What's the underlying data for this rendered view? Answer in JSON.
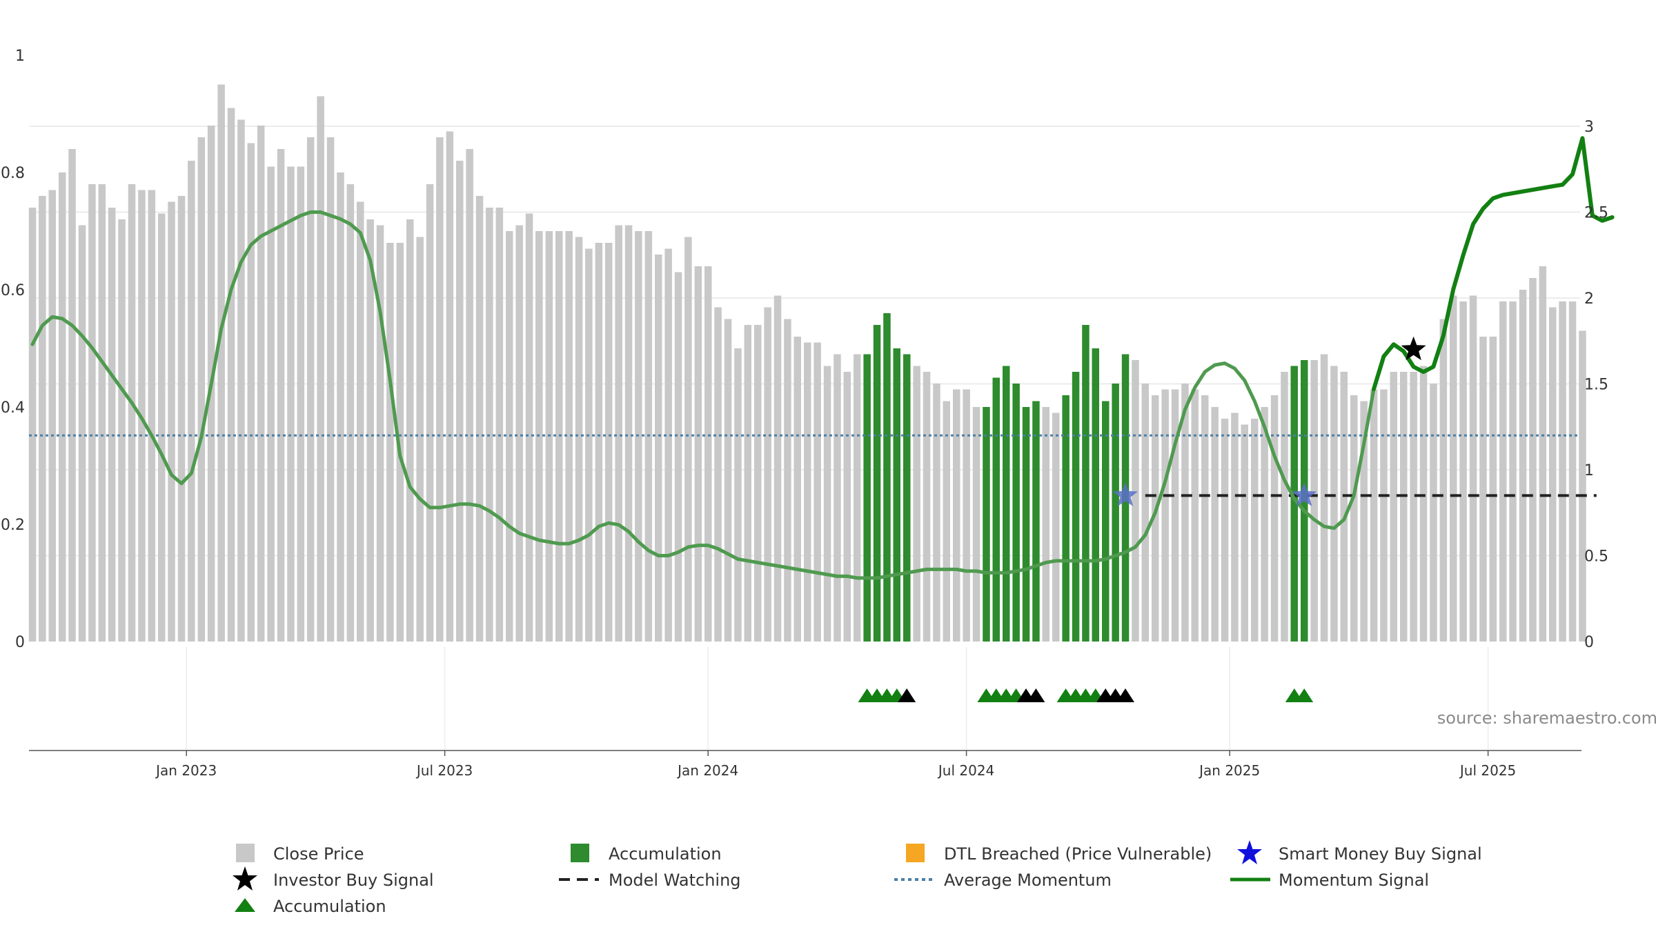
{
  "chart_data": {
    "type": "bar",
    "x_ticks": [
      "Jan 2023",
      "Jul 2023",
      "Jan 2024",
      "Jul 2024",
      "Jan 2025",
      "Jul 2025"
    ],
    "left_axis": {
      "ticks": [
        "0",
        "0.2",
        "0.4",
        "0.6",
        "0.8",
        "1"
      ],
      "ylim": [
        0,
        1
      ]
    },
    "right_axis": {
      "ticks": [
        "0",
        "0.5",
        "1",
        "1.5",
        "2",
        "2.5",
        "3"
      ],
      "ylim": [
        0,
        3.4
      ]
    },
    "grid": "horizontal",
    "legend_position": "bottom",
    "source": "source: sharemaestro.com",
    "colors": {
      "close_price": "#c8c8c8",
      "accumulation_bar": "#2e8b2e",
      "dtl_breached": "#f5a623",
      "momentum": "#128012",
      "average_momentum": "#4a7fa6",
      "model_watching": "#222222",
      "smart_money": "#1010dd",
      "investor_buy": "#000000",
      "accumulation_marker": "#128012"
    },
    "legend": [
      {
        "label": "Close Price",
        "icon": "grey-square-icon"
      },
      {
        "label": "Accumulation",
        "icon": "green-square-icon"
      },
      {
        "label": "DTL Breached (Price Vulnerable)",
        "icon": "orange-square-icon"
      },
      {
        "label": "Smart Money Buy Signal",
        "icon": "blue-star-icon"
      },
      {
        "label": "Investor Buy Signal",
        "icon": "black-star-icon"
      },
      {
        "label": "Model Watching",
        "icon": "dashed-line-icon"
      },
      {
        "label": "Average Momentum",
        "icon": "dotted-line-icon"
      },
      {
        "label": "Momentum Signal",
        "icon": "green-line-icon"
      },
      {
        "label": "Accumulation",
        "icon": "green-triangle-icon"
      }
    ],
    "series": [
      {
        "name": "Close Price",
        "axis": "left",
        "values": [
          0.74,
          0.76,
          0.77,
          0.8,
          0.84,
          0.71,
          0.78,
          0.78,
          0.74,
          0.72,
          0.78,
          0.77,
          0.77,
          0.73,
          0.75,
          0.76,
          0.82,
          0.86,
          0.88,
          0.95,
          0.91,
          0.89,
          0.85,
          0.88,
          0.81,
          0.84,
          0.81,
          0.81,
          0.86,
          0.93,
          0.86,
          0.8,
          0.78,
          0.75,
          0.72,
          0.71,
          0.68,
          0.68,
          0.72,
          0.69,
          0.78,
          0.86,
          0.87,
          0.82,
          0.84,
          0.76,
          0.74,
          0.74,
          0.7,
          0.71,
          0.73,
          0.7,
          0.7,
          0.7,
          0.7,
          0.69,
          0.67,
          0.68,
          0.68,
          0.71,
          0.71,
          0.7,
          0.7,
          0.66,
          0.67,
          0.63,
          0.69,
          0.64,
          0.64,
          0.57,
          0.55,
          0.5,
          0.54,
          0.54,
          0.57,
          0.59,
          0.55,
          0.52,
          0.51,
          0.51,
          0.47,
          0.49,
          0.46,
          0.49,
          0.49,
          0.54,
          0.56,
          0.5,
          0.49,
          0.47,
          0.46,
          0.44,
          0.41,
          0.43,
          0.43,
          0.4,
          0.4,
          0.45,
          0.47,
          0.44,
          0.4,
          0.41,
          0.4,
          0.39,
          0.42,
          0.46,
          0.54,
          0.5,
          0.41,
          0.44,
          0.49,
          0.48,
          0.44,
          0.42,
          0.43,
          0.43,
          0.44,
          0.43,
          0.42,
          0.4,
          0.38,
          0.39,
          0.37,
          0.38,
          0.4,
          0.42,
          0.46,
          0.47,
          0.48,
          0.48,
          0.49,
          0.47,
          0.46,
          0.42,
          0.41,
          0.43,
          0.43,
          0.46,
          0.46,
          0.46,
          0.47,
          0.44,
          0.55,
          0.59,
          0.58,
          0.59,
          0.52,
          0.52,
          0.58,
          0.58,
          0.6,
          0.62,
          0.64,
          0.57,
          0.58,
          0.58,
          0.53
        ]
      },
      {
        "name": "Accumulation",
        "axis": "left",
        "bar_indices": [
          84,
          85,
          86,
          87,
          88,
          96,
          97,
          98,
          99,
          100,
          101,
          104,
          105,
          106,
          107,
          108,
          109,
          110,
          127,
          128
        ]
      },
      {
        "name": "Momentum Signal",
        "axis": "right",
        "values": [
          1.73,
          1.84,
          1.89,
          1.88,
          1.84,
          1.78,
          1.71,
          1.63,
          1.55,
          1.47,
          1.39,
          1.3,
          1.2,
          1.09,
          0.97,
          0.92,
          0.98,
          1.19,
          1.5,
          1.82,
          2.05,
          2.21,
          2.31,
          2.36,
          2.39,
          2.42,
          2.45,
          2.48,
          2.5,
          2.5,
          2.48,
          2.46,
          2.43,
          2.38,
          2.22,
          1.92,
          1.52,
          1.08,
          0.9,
          0.83,
          0.78,
          0.78,
          0.79,
          0.8,
          0.8,
          0.79,
          0.76,
          0.72,
          0.67,
          0.63,
          0.61,
          0.59,
          0.58,
          0.57,
          0.57,
          0.59,
          0.62,
          0.67,
          0.69,
          0.68,
          0.64,
          0.58,
          0.53,
          0.5,
          0.5,
          0.52,
          0.55,
          0.56,
          0.56,
          0.54,
          0.51,
          0.48,
          0.47,
          0.46,
          0.45,
          0.44,
          0.43,
          0.42,
          0.41,
          0.4,
          0.39,
          0.38,
          0.38,
          0.37,
          0.37,
          0.37,
          0.38,
          0.39,
          0.4,
          0.41,
          0.42,
          0.42,
          0.42,
          0.42,
          0.41,
          0.41,
          0.4,
          0.4,
          0.4,
          0.41,
          0.42,
          0.44,
          0.46,
          0.47,
          0.47,
          0.47,
          0.47,
          0.47,
          0.48,
          0.5,
          0.52,
          0.55,
          0.62,
          0.75,
          0.93,
          1.15,
          1.35,
          1.48,
          1.57,
          1.61,
          1.62,
          1.59,
          1.52,
          1.4,
          1.25,
          1.08,
          0.94,
          0.83,
          0.76,
          0.71,
          0.67,
          0.66,
          0.71,
          0.85,
          1.15,
          1.47,
          1.66,
          1.73,
          1.69,
          1.6,
          1.57,
          1.6,
          1.78,
          2.05,
          2.25,
          2.43,
          2.52,
          2.58,
          2.6,
          2.61,
          2.62,
          2.63,
          2.64,
          2.65,
          2.66,
          2.72,
          2.93,
          2.48,
          2.45,
          2.47
        ]
      },
      {
        "name": "Average Momentum",
        "axis": "right",
        "value": 1.2
      },
      {
        "name": "Model Watching",
        "axis": "right",
        "value": 0.85,
        "x_range_indices": [
          112,
          157
        ]
      },
      {
        "name": "Smart Money Buy Signal",
        "axis": "right",
        "points": [
          {
            "index": 110,
            "value": 0.85
          },
          {
            "index": 128,
            "value": 0.85
          }
        ]
      },
      {
        "name": "Investor Buy Signal",
        "axis": "right",
        "points": [
          {
            "index": 139,
            "value": 1.7
          }
        ]
      },
      {
        "name": "Accumulation markers",
        "green_indices": [
          84,
          85,
          86,
          87,
          96,
          97,
          98,
          99,
          104,
          105,
          106,
          107,
          127,
          128
        ],
        "black_indices": [
          88,
          100,
          101,
          108,
          109,
          110
        ]
      }
    ]
  }
}
